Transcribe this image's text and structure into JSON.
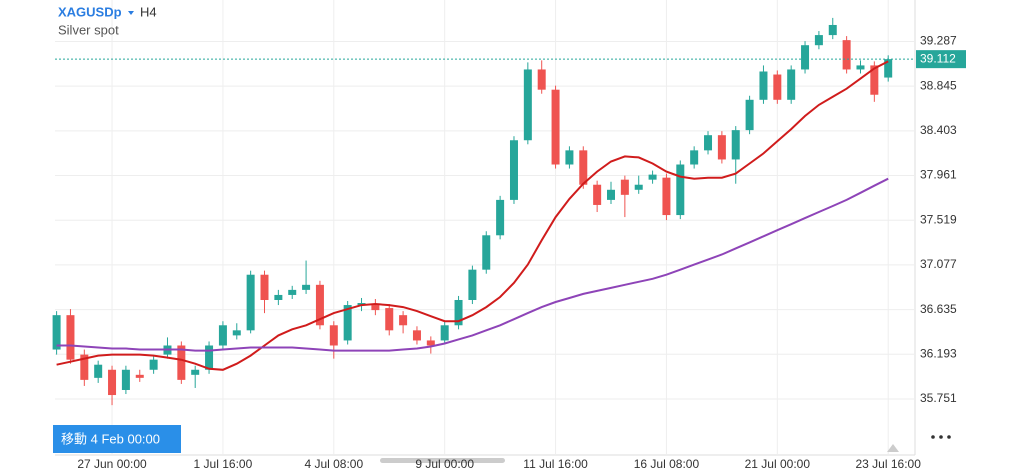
{
  "chart_data": {
    "type": "candlestick",
    "symbol": "XAGUSDp",
    "timeframe": "H4",
    "subtitle": "Silver spot",
    "categories": [
      null,
      null,
      null,
      null,
      "27 Jun 00:00",
      null,
      null,
      null,
      null,
      null,
      null,
      null,
      "1 Jul 16:00",
      null,
      null,
      null,
      null,
      null,
      null,
      null,
      "4 Jul 08:00",
      null,
      null,
      null,
      null,
      null,
      null,
      null,
      "9 Jul 00:00",
      null,
      null,
      null,
      null,
      null,
      null,
      null,
      "11 Jul 16:00",
      null,
      null,
      null,
      null,
      null,
      null,
      null,
      "16 Jul 08:00",
      null,
      null,
      null,
      null,
      null,
      null,
      null,
      "21 Jul 00:00",
      null,
      null,
      null,
      null,
      null,
      null,
      null,
      "23 Jul 16:00"
    ],
    "open": [
      36.24,
      36.58,
      36.19,
      35.96,
      36.04,
      35.84,
      35.99,
      36.04,
      36.19,
      36.28,
      35.99,
      36.04,
      36.28,
      36.38,
      36.43,
      36.98,
      36.73,
      36.78,
      36.83,
      36.88,
      36.48,
      36.33,
      36.68,
      36.68,
      36.65,
      36.58,
      36.43,
      36.33,
      36.33,
      36.48,
      36.73,
      37.03,
      37.37,
      37.72,
      38.31,
      39.01,
      38.81,
      38.07,
      38.21,
      37.87,
      37.72,
      37.92,
      37.82,
      37.92,
      37.94,
      37.57,
      38.07,
      38.21,
      38.36,
      38.12,
      38.41,
      38.71,
      38.96,
      38.71,
      39.01,
      39.25,
      39.35,
      39.3,
      39.01,
      39.05,
      38.93
    ],
    "high": [
      36.62,
      36.64,
      36.24,
      36.13,
      36.08,
      36.08,
      36.04,
      36.18,
      36.36,
      36.32,
      36.08,
      36.32,
      36.52,
      36.5,
      37.02,
      37.02,
      36.83,
      36.87,
      37.12,
      36.92,
      36.52,
      36.72,
      36.75,
      36.74,
      36.69,
      36.62,
      36.47,
      36.37,
      36.52,
      36.77,
      37.07,
      37.41,
      37.76,
      38.35,
      39.08,
      39.1,
      38.85,
      38.25,
      38.25,
      37.91,
      37.9,
      37.96,
      37.96,
      38.01,
      37.98,
      38.11,
      38.25,
      38.4,
      38.4,
      38.45,
      38.75,
      39.05,
      39.0,
      39.05,
      39.29,
      39.39,
      39.52,
      39.34,
      39.1,
      39.09,
      39.15
    ],
    "low": [
      36.19,
      36.1,
      35.88,
      35.91,
      35.69,
      35.8,
      35.92,
      36.0,
      36.15,
      35.9,
      35.86,
      36.0,
      36.24,
      36.34,
      36.4,
      36.6,
      36.68,
      36.74,
      36.79,
      36.44,
      36.15,
      36.29,
      36.62,
      36.58,
      36.38,
      36.4,
      36.29,
      36.2,
      36.29,
      36.44,
      36.69,
      36.99,
      37.33,
      37.68,
      38.27,
      38.77,
      38.03,
      38.03,
      37.83,
      37.6,
      37.68,
      37.55,
      37.78,
      37.88,
      37.52,
      37.53,
      38.03,
      38.17,
      38.08,
      37.88,
      38.37,
      38.67,
      38.67,
      38.67,
      38.97,
      39.21,
      39.31,
      38.97,
      38.97,
      38.69,
      38.89
    ],
    "close": [
      36.58,
      36.14,
      35.94,
      36.09,
      35.79,
      36.04,
      35.96,
      36.14,
      36.28,
      35.94,
      36.04,
      36.28,
      36.48,
      36.43,
      36.98,
      36.73,
      36.78,
      36.83,
      36.88,
      36.48,
      36.28,
      36.68,
      36.7,
      36.63,
      36.43,
      36.48,
      36.33,
      36.28,
      36.48,
      36.73,
      37.03,
      37.37,
      37.72,
      38.31,
      39.01,
      38.81,
      38.07,
      38.21,
      37.87,
      37.67,
      37.82,
      37.77,
      37.87,
      37.97,
      37.57,
      38.07,
      38.21,
      38.36,
      38.12,
      38.41,
      38.71,
      38.99,
      38.71,
      39.01,
      39.25,
      39.35,
      39.45,
      39.01,
      39.05,
      38.76,
      39.112
    ],
    "up_color": "#26a69a",
    "down_color": "#ef5350",
    "series": [
      {
        "color": "#d01c1c",
        "values": [
          36.09,
          36.12,
          36.15,
          36.18,
          36.19,
          36.19,
          36.19,
          36.18,
          36.16,
          36.14,
          36.1,
          36.05,
          36.04,
          36.1,
          36.18,
          36.28,
          36.38,
          36.44,
          36.48,
          36.54,
          36.6,
          36.64,
          36.68,
          36.69,
          36.68,
          36.66,
          36.62,
          36.57,
          36.52,
          36.52,
          36.58,
          36.66,
          36.76,
          36.9,
          37.08,
          37.32,
          37.55,
          37.73,
          37.88,
          38.0,
          38.1,
          38.15,
          38.14,
          38.08,
          38.0,
          37.95,
          37.93,
          37.94,
          37.94,
          37.98,
          38.08,
          38.18,
          38.3,
          38.42,
          38.55,
          38.66,
          38.74,
          38.82,
          38.92,
          39.02,
          39.09
        ]
      },
      {
        "color": "#8e44b8",
        "values": [
          36.28,
          36.28,
          36.27,
          36.26,
          36.25,
          36.25,
          36.24,
          36.24,
          36.24,
          36.24,
          36.23,
          36.23,
          36.24,
          36.25,
          36.26,
          36.26,
          36.26,
          36.26,
          36.25,
          36.24,
          36.23,
          36.23,
          36.23,
          36.23,
          36.23,
          36.24,
          36.25,
          36.27,
          36.3,
          36.34,
          36.38,
          36.43,
          36.48,
          36.54,
          36.6,
          36.66,
          36.71,
          36.75,
          36.79,
          36.82,
          36.85,
          36.88,
          36.91,
          36.94,
          36.98,
          37.03,
          37.08,
          37.13,
          37.18,
          37.24,
          37.3,
          37.36,
          37.42,
          37.48,
          37.54,
          37.6,
          37.66,
          37.72,
          37.79,
          37.86,
          37.93
        ]
      }
    ],
    "ylim": [
      35.197,
      39.697
    ],
    "yticks": [
      35.751,
      36.193,
      36.635,
      37.077,
      37.519,
      37.961,
      38.403,
      38.845,
      39.287
    ],
    "last_price": 39.112,
    "last_color": "#26a69a",
    "grid": true
  },
  "badge": "移動 4 Feb 00:00"
}
